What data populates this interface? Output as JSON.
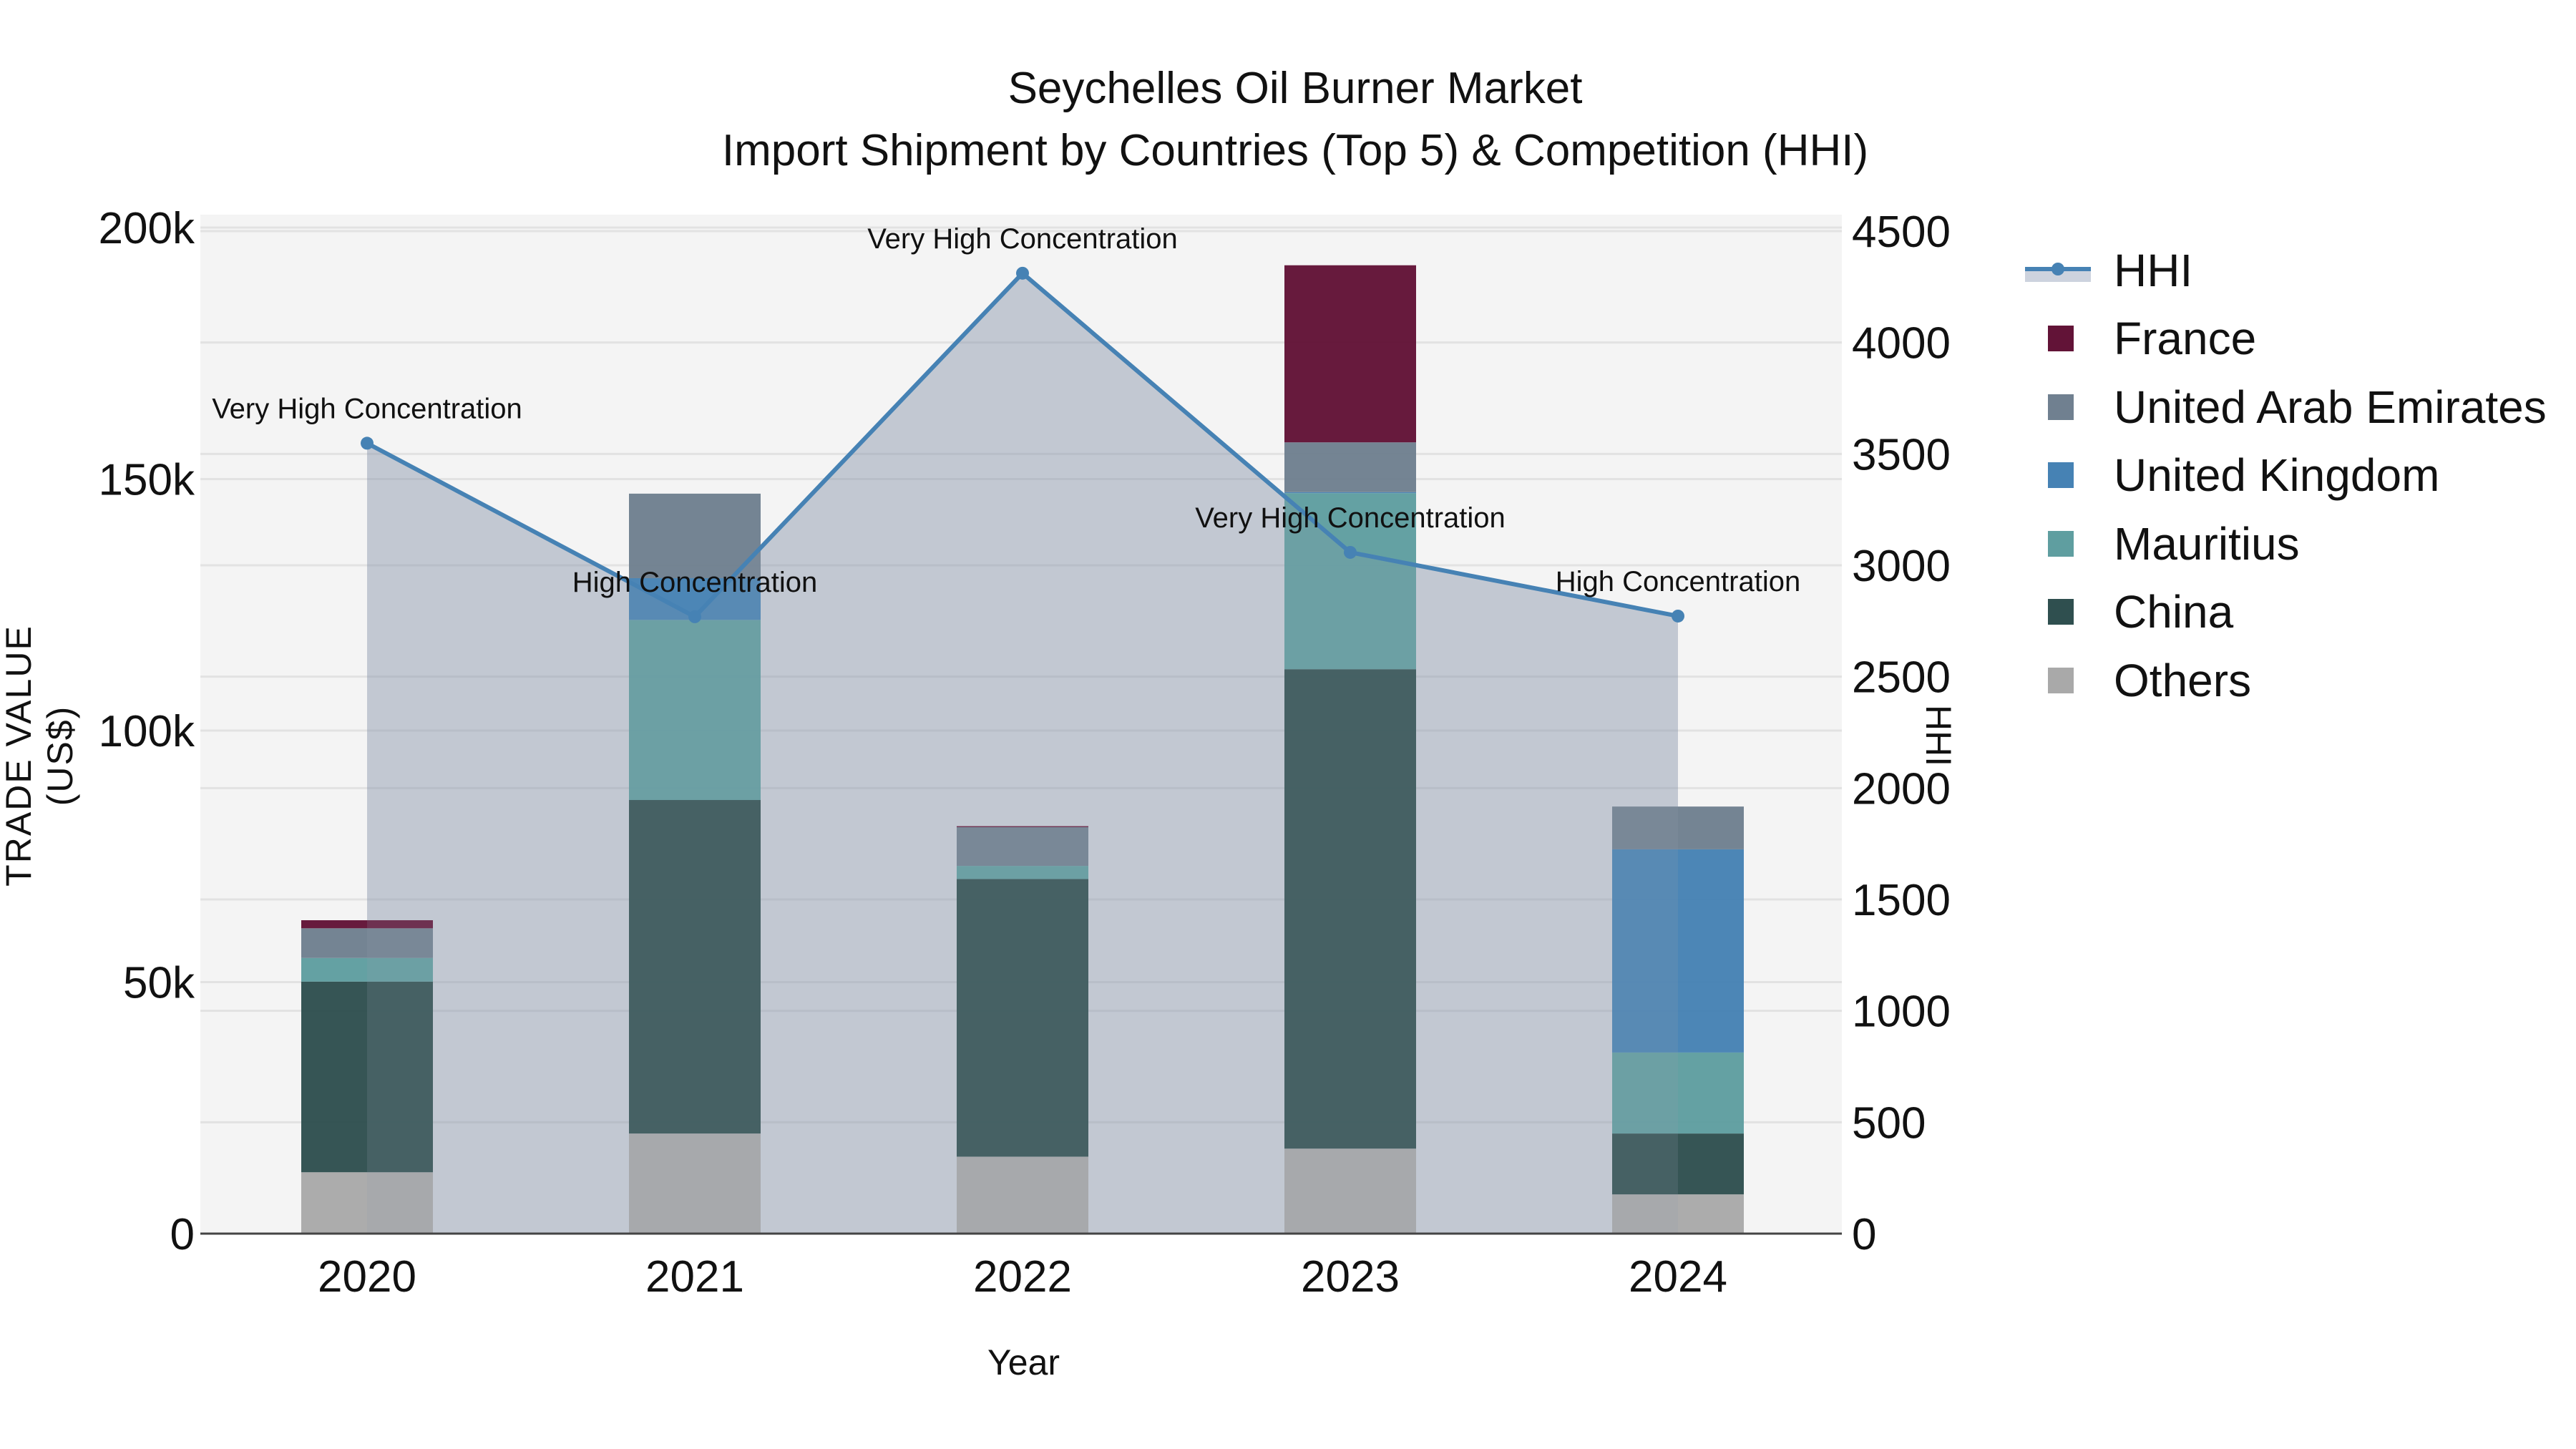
{
  "title": {
    "line1": "Seychelles Oil Burner Market",
    "line2": "Import Shipment by Countries (Top 5) & Competition (HHI)"
  },
  "axes": {
    "x_title": "Year",
    "y_left_title": "TRADE VALUE (US$)",
    "y_right_title": "HHI"
  },
  "legend": {
    "items": [
      {
        "label": "HHI",
        "type": "line",
        "color": "#4682b4"
      },
      {
        "label": "France",
        "type": "bar",
        "color": "#621337"
      },
      {
        "label": "United Arab Emirates",
        "type": "bar",
        "color": "#708090"
      },
      {
        "label": "United Kingdom",
        "type": "bar",
        "color": "#4682b4"
      },
      {
        "label": "Mauritius",
        "type": "bar",
        "color": "#5f9ea0"
      },
      {
        "label": "China",
        "type": "bar",
        "color": "#2f4f4f"
      },
      {
        "label": "Others",
        "type": "bar",
        "color": "#a9a9a9"
      }
    ]
  },
  "chart_data": {
    "type": "bar",
    "subtype": "stacked bar with line overlay (secondary axis)",
    "title": "Seychelles Oil Burner Market — Import Shipment by Countries (Top 5) & Competition (HHI)",
    "xlabel": "Year",
    "ylabel": "TRADE VALUE (US$)",
    "y2label": "HHI",
    "categories": [
      "2020",
      "2021",
      "2022",
      "2023",
      "2024"
    ],
    "ylim": [
      0,
      200000
    ],
    "y_ticks": [
      0,
      50000,
      100000,
      150000,
      200000
    ],
    "y_tick_labels": [
      "0",
      "50k",
      "100k",
      "150k",
      "200k"
    ],
    "y2lim": [
      0,
      4500
    ],
    "y2_ticks": [
      0,
      500,
      1000,
      1500,
      2000,
      2500,
      3000,
      3500,
      4000,
      4500
    ],
    "y2_tick_labels": [
      "0",
      "500",
      "1000",
      "1500",
      "2000",
      "2500",
      "3000",
      "3500",
      "4000",
      "4500"
    ],
    "grid": true,
    "legend_position": "right",
    "stack_order_bottom_to_top": [
      "Others",
      "China",
      "Mauritius",
      "United Kingdom",
      "United Arab Emirates",
      "France"
    ],
    "series": [
      {
        "name": "Others",
        "color": "#a9a9a9",
        "values": [
          12200,
          19900,
          15300,
          16900,
          7800
        ]
      },
      {
        "name": "China",
        "color": "#2f4f4f",
        "values": [
          37900,
          66300,
          55200,
          95300,
          12100
        ]
      },
      {
        "name": "Mauritius",
        "color": "#5f9ea0",
        "values": [
          4700,
          35800,
          2600,
          35000,
          16100
        ]
      },
      {
        "name": "United Kingdom",
        "color": "#4682b4",
        "values": [
          0,
          8300,
          0,
          200,
          40400
        ]
      },
      {
        "name": "United Arab Emirates",
        "color": "#708090",
        "values": [
          5900,
          16800,
          7700,
          9900,
          8500
        ]
      },
      {
        "name": "France",
        "color": "#621337",
        "values": [
          1600,
          0,
          200,
          35200,
          0
        ]
      }
    ],
    "line_series": {
      "name": "HHI",
      "axis": "right",
      "color": "#4682b4",
      "fill": "tozeroy",
      "values": [
        3548,
        2769,
        4311,
        3058,
        2772
      ],
      "annotations": [
        "Very High Concentration",
        "High Concentration",
        "Very High Concentration",
        "Very High Concentration",
        "High Concentration"
      ]
    }
  }
}
